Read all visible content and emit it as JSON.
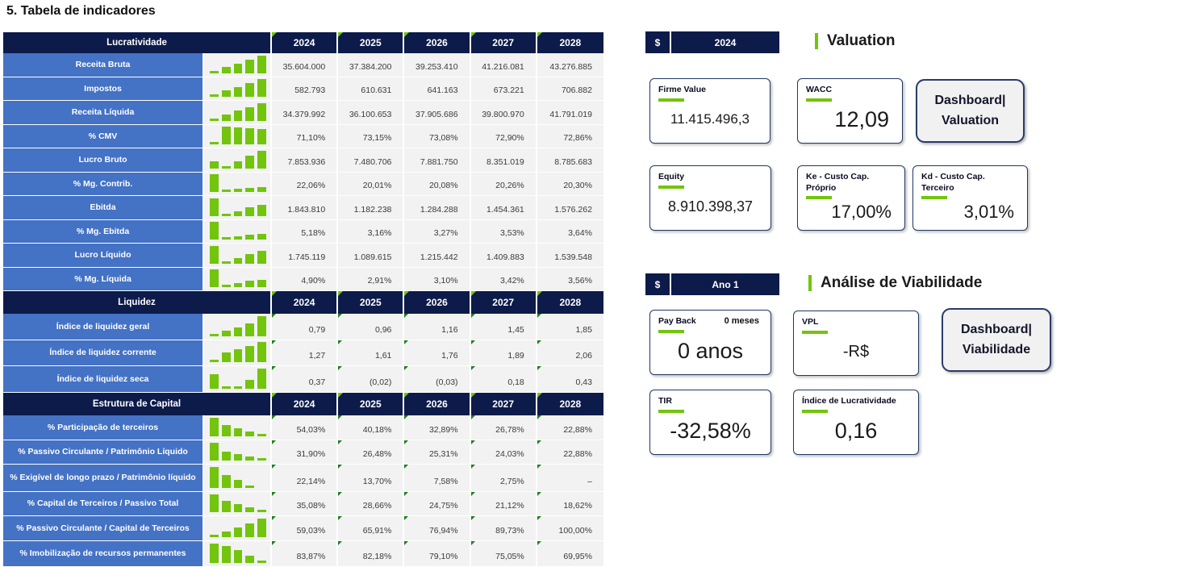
{
  "title": "5. Tabela de indicadores",
  "colors": {
    "navy": "#0D1B4A",
    "row_blue": "#4472C4",
    "green": "#72C40D",
    "mark_green": "#1F7F1F",
    "cell_bg": "#F2F2F2",
    "card_border": "#1F3864",
    "button_bg": "#F1F1F1",
    "text_dark": "#1A1A1A"
  },
  "years": [
    "2024",
    "2025",
    "2026",
    "2027",
    "2028"
  ],
  "table": {
    "sections": [
      {
        "header": "Lucratividade",
        "cell_marks": false,
        "rows": [
          {
            "label": "Receita Bruta",
            "values": [
              "35.604.000",
              "37.384.200",
              "39.253.410",
              "41.216.081",
              "43.276.885"
            ],
            "spark": [
              0.05,
              0.27,
              0.5,
              0.76,
              1.0
            ]
          },
          {
            "label": "Impostos",
            "values": [
              "582.793",
              "610.631",
              "641.163",
              "673.221",
              "706.882"
            ],
            "spark": [
              0.05,
              0.27,
              0.5,
              0.76,
              1.0
            ]
          },
          {
            "label": "Receita Líquida",
            "values": [
              "34.379.992",
              "36.100.653",
              "37.905.686",
              "39.800.970",
              "41.791.019"
            ],
            "spark": [
              0.05,
              0.27,
              0.52,
              0.77,
              1.0
            ]
          },
          {
            "label": "% CMV",
            "values": [
              "71,10%",
              "73,15%",
              "73,08%",
              "72,90%",
              "72,86%"
            ],
            "spark": [
              0.05,
              1.0,
              0.97,
              0.9,
              0.88
            ]
          },
          {
            "label": "Lucro Bruto",
            "values": [
              "7.853.936",
              "7.480.706",
              "7.881.750",
              "8.351.019",
              "8.785.683"
            ],
            "spark": [
              0.3,
              0.05,
              0.32,
              0.68,
              1.0
            ]
          },
          {
            "label": "% Mg. Contrib.",
            "values": [
              "22,06%",
              "20,01%",
              "20,08%",
              "20,26%",
              "20,30%"
            ],
            "spark": [
              1.0,
              0.05,
              0.07,
              0.13,
              0.15
            ]
          },
          {
            "label": "Ebitda",
            "values": [
              "1.843.810",
              "1.182.238",
              "1.284.288",
              "1.454.361",
              "1.576.262"
            ],
            "spark": [
              1.0,
              0.05,
              0.18,
              0.42,
              0.6
            ]
          },
          {
            "label": "% Mg. Ebitda",
            "values": [
              "5,18%",
              "3,16%",
              "3,27%",
              "3,53%",
              "3,64%"
            ],
            "spark": [
              1.0,
              0.05,
              0.08,
              0.18,
              0.23
            ]
          },
          {
            "label": "Lucro Líquido",
            "values": [
              "1.745.119",
              "1.089.615",
              "1.215.442",
              "1.409.883",
              "1.539.548"
            ],
            "spark": [
              1.0,
              0.05,
              0.2,
              0.48,
              0.68
            ]
          },
          {
            "label": "% Mg. Líquida",
            "values": [
              "4,90%",
              "2,91%",
              "3,10%",
              "3,42%",
              "3,56%"
            ],
            "spark": [
              1.0,
              0.05,
              0.1,
              0.26,
              0.33
            ]
          }
        ]
      },
      {
        "header": "Liquidez",
        "cell_marks": true,
        "rows": [
          {
            "label": "Índice de liquidez geral",
            "values": [
              "0,79",
              "0,96",
              "1,16",
              "1,45",
              "1,85"
            ],
            "spark": [
              0.05,
              0.18,
              0.38,
              0.62,
              1.0
            ]
          },
          {
            "label": "Índice de liquidez corrente",
            "values": [
              "1,27",
              "1,61",
              "1,76",
              "1,89",
              "2,06"
            ],
            "spark": [
              0.05,
              0.42,
              0.6,
              0.78,
              1.0
            ]
          },
          {
            "label": "Índice de liquidez seca",
            "values": [
              "0,37",
              "(0,02)",
              "(0,03)",
              "0,18",
              "0,43"
            ],
            "spark": [
              0.68,
              0.05,
              0.05,
              0.38,
              1.0
            ]
          }
        ]
      },
      {
        "header": "Estrutura de Capital",
        "cell_marks": true,
        "rows": [
          {
            "label": "% Participação de terceiros",
            "values": [
              "54,03%",
              "40,18%",
              "32,89%",
              "26,78%",
              "22,88%"
            ],
            "spark": [
              1.0,
              0.55,
              0.37,
              0.14,
              0.05
            ]
          },
          {
            "label": "% Passivo Circulante / Patrimônio Líquido",
            "values": [
              "31,90%",
              "26,48%",
              "25,31%",
              "24,03%",
              "22,88%"
            ],
            "spark": [
              1.0,
              0.4,
              0.27,
              0.13,
              0.05
            ]
          },
          {
            "label": "% Exigível de longo prazo / Patrimônio líquido",
            "values": [
              "22,14%",
              "13,70%",
              "7,58%",
              "2,75%",
              "–"
            ],
            "spark": [
              1.0,
              0.57,
              0.3,
              0.06,
              0
            ]
          },
          {
            "label": "% Capital de Terceiros / Passivo Total",
            "values": [
              "35,08%",
              "28,66%",
              "24,75%",
              "21,12%",
              "18,62%"
            ],
            "spark": [
              1.0,
              0.6,
              0.36,
              0.16,
              0.05
            ]
          },
          {
            "label": "% Passivo Circulante / Capital de Terceiros",
            "values": [
              "59,03%",
              "65,91%",
              "76,94%",
              "89,73%",
              "100,00%"
            ],
            "spark": [
              0.05,
              0.18,
              0.45,
              0.72,
              1.0
            ]
          },
          {
            "label": "% Imobilização de recursos permanentes",
            "values": [
              "83,87%",
              "82,18%",
              "79,10%",
              "75,05%",
              "69,95%"
            ],
            "spark": [
              1.0,
              0.88,
              0.6,
              0.3,
              0.05
            ]
          }
        ]
      }
    ]
  },
  "valuation": {
    "bar": {
      "currency": "$",
      "period": "2024"
    },
    "heading": "Valuation",
    "cards": {
      "firme_value": {
        "label": "Firme Value",
        "value": "11.415.496,3"
      },
      "wacc": {
        "label": "WACC",
        "value": "12,09"
      },
      "dashboard": {
        "line1": "Dashboard|",
        "line2": "Valuation"
      },
      "equity": {
        "label": "Equity",
        "value": "8.910.398,37"
      },
      "ke": {
        "label": "Ke - Custo Cap. Próprio",
        "value": "17,00%"
      },
      "kd": {
        "label": "Kd - Custo Cap. Terceiro",
        "value": "3,01%"
      }
    }
  },
  "viability": {
    "bar": {
      "currency": "$",
      "period": "Ano 1"
    },
    "heading": "Análise de Viabilidade",
    "cards": {
      "payback": {
        "label": "Pay Back",
        "sub": "0 meses",
        "value": "0 anos"
      },
      "vpl": {
        "label": "VPL",
        "value": "-R$"
      },
      "dashboard": {
        "line1": "Dashboard|",
        "line2": "Viabilidade"
      },
      "tir": {
        "label": "TIR",
        "value": "-32,58%"
      },
      "indice": {
        "label": "Índice de Lucratividade",
        "value": "0,16"
      }
    }
  }
}
